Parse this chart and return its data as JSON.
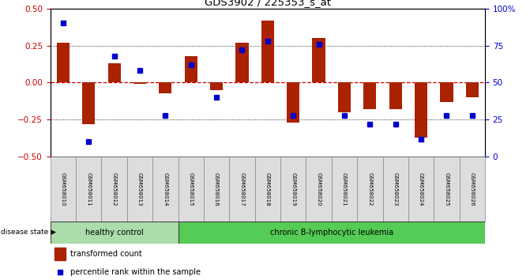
{
  "title": "GDS3902 / 225353_s_at",
  "samples": [
    "GSM658010",
    "GSM658011",
    "GSM658012",
    "GSM658013",
    "GSM658014",
    "GSM658015",
    "GSM658016",
    "GSM658017",
    "GSM658018",
    "GSM658019",
    "GSM658020",
    "GSM658021",
    "GSM658022",
    "GSM658023",
    "GSM658024",
    "GSM658025",
    "GSM658026"
  ],
  "bar_values": [
    0.27,
    -0.28,
    0.13,
    -0.01,
    -0.07,
    0.18,
    -0.05,
    0.27,
    0.42,
    -0.27,
    0.3,
    -0.2,
    -0.18,
    -0.18,
    -0.37,
    -0.13,
    -0.1
  ],
  "dot_values": [
    90,
    10,
    68,
    58,
    28,
    62,
    40,
    72,
    78,
    28,
    76,
    28,
    22,
    22,
    12,
    28,
    28
  ],
  "ylim": [
    -0.5,
    0.5
  ],
  "y2lim": [
    0,
    100
  ],
  "yticks": [
    -0.5,
    -0.25,
    0,
    0.25,
    0.5
  ],
  "y2ticks": [
    0,
    25,
    50,
    75,
    100
  ],
  "bar_color": "#AA2200",
  "dot_color": "#0000CC",
  "hline_zero_color": "#CC0000",
  "hline_zero_style": "--",
  "hline_other_color": "#000000",
  "hline_other_style": ":",
  "group1_label": "healthy control",
  "group2_label": "chronic B-lymphocytic leukemia",
  "group1_color": "#AADDAA",
  "group2_color": "#55CC55",
  "group1_samples": 5,
  "group2_samples": 12,
  "disease_state_label": "disease state",
  "legend_bar_label": "transformed count",
  "legend_dot_label": "percentile rank within the sample",
  "left_tick_color": "#CC0000",
  "right_tick_color": "#0000CC",
  "bg_color": "#FFFFFF",
  "sample_box_color": "#DDDDDD",
  "sample_box_edge": "#888888"
}
